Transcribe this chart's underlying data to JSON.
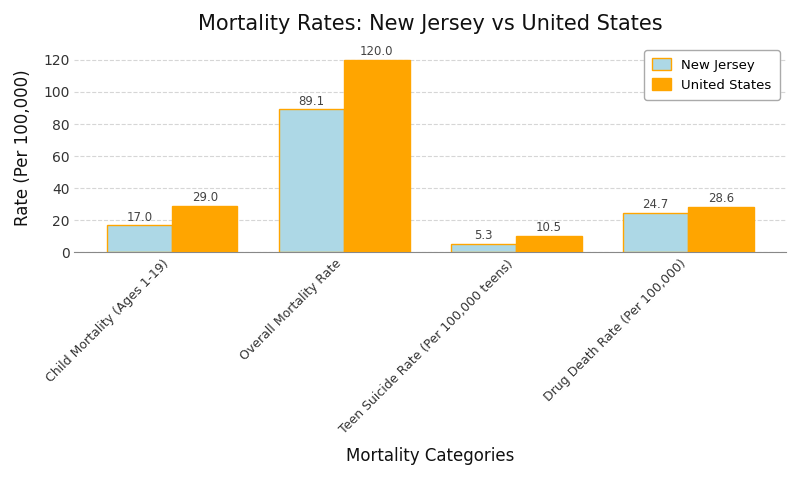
{
  "title": "Mortality Rates: New Jersey vs United States",
  "xlabel": "Mortality Categories",
  "ylabel": "Rate (Per 100,000)",
  "categories": [
    "Child Mortality (Ages 1-19)",
    "Overall Mortality Rate",
    "Teen Suicide Rate (Per 100,000 teens)",
    "Drug Death Rate (Per 100,000)"
  ],
  "new_jersey": [
    17.0,
    89.1,
    5.3,
    24.7
  ],
  "united_states": [
    29.0,
    120.0,
    10.5,
    28.6
  ],
  "nj_color": "#ADD8E6",
  "us_color": "#FFA500",
  "nj_edge_color": "#FFA500",
  "us_edge_color": "#FFA500",
  "nj_label": "New Jersey",
  "us_label": "United States",
  "ylim": [
    0,
    130
  ],
  "yticks": [
    0,
    20,
    40,
    60,
    80,
    100,
    120
  ],
  "bar_width": 0.38,
  "title_fontsize": 15,
  "axis_label_fontsize": 12,
  "tick_fontsize": 10,
  "xtick_fontsize": 9,
  "value_label_fontsize": 8.5,
  "background_color": "#FFFFFF",
  "grid_color": "#CCCCCC",
  "grid_linestyle": "--",
  "grid_alpha": 0.8
}
